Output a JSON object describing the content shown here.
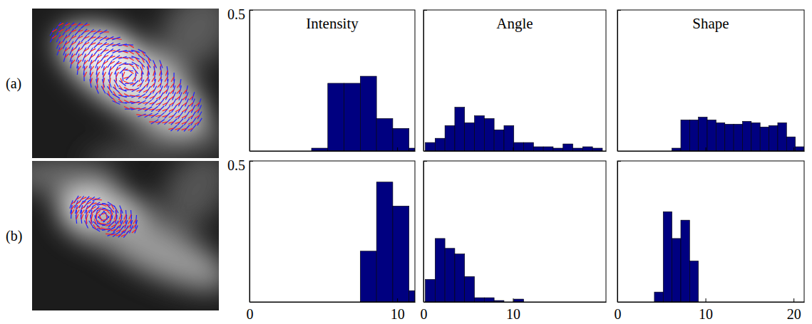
{
  "row_labels": [
    "(a)",
    "(b)"
  ],
  "chart_data": [
    {
      "type": "histogram",
      "title": "Intensity",
      "color": "#000080",
      "bins": [
        4.2,
        5.3,
        6.4,
        7.5,
        8.6,
        9.7,
        10.8,
        11.2
      ],
      "values": [
        0.01,
        0.24,
        0.24,
        0.265,
        0.115,
        0.08,
        0.01
      ],
      "xlim": [
        0,
        11.2
      ],
      "ylim": [
        0,
        0.5
      ],
      "xticks": [
        0,
        10
      ],
      "yticks": [
        0.5
      ],
      "tick_labels": "y"
    },
    {
      "type": "histogram",
      "title": "Angle",
      "color": "#000080",
      "bins": [
        0.2,
        1.3,
        2.4,
        3.5,
        4.6,
        5.7,
        6.8,
        7.9,
        9.0,
        10.1,
        11.2,
        12.3,
        13.4,
        14.5,
        15.6,
        16.7,
        17.8,
        18.9,
        20.0
      ],
      "values": [
        0.03,
        0.045,
        0.09,
        0.155,
        0.1,
        0.125,
        0.115,
        0.075,
        0.09,
        0.03,
        0.03,
        0.015,
        0.015,
        0.01,
        0.025,
        0.01,
        0.015,
        0.01
      ],
      "xlim": [
        0,
        20.4
      ],
      "ylim": [
        0,
        0.5
      ],
      "xticks": [
        0,
        10
      ],
      "yticks": [
        0.5
      ],
      "tick_labels": false
    },
    {
      "type": "histogram",
      "title": "Shape",
      "color": "#000080",
      "bins": [
        6.2,
        7.2,
        8.2,
        9.2,
        10.2,
        11.2,
        12.2,
        13.2,
        14.2,
        15.2,
        16.2,
        17.2,
        18.2,
        19.2,
        20.2,
        21.2
      ],
      "values": [
        0.01,
        0.11,
        0.11,
        0.12,
        0.11,
        0.1,
        0.095,
        0.095,
        0.105,
        0.1,
        0.085,
        0.09,
        0.1,
        0.05,
        0.015
      ],
      "xlim": [
        0,
        21.2
      ],
      "ylim": [
        0,
        0.5
      ],
      "xticks": [
        0,
        10,
        20
      ],
      "yticks": [
        0.5
      ],
      "tick_labels": false
    },
    {
      "type": "histogram",
      "color": "#000080",
      "bins": [
        7.5,
        8.6,
        9.7,
        10.8,
        11.2
      ],
      "values": [
        0.18,
        0.425,
        0.34,
        0.04
      ],
      "xlim": [
        0,
        11.2
      ],
      "ylim": [
        0,
        0.5
      ],
      "xticks": [
        0,
        10
      ],
      "yticks": [
        0.5
      ],
      "tick_labels": true
    },
    {
      "type": "histogram",
      "color": "#000080",
      "bins": [
        0.2,
        1.3,
        2.4,
        3.5,
        4.6,
        5.7,
        6.8,
        7.9,
        9.0,
        10.1,
        11.2,
        12.3,
        13.4,
        14.5,
        15.6,
        16.7,
        17.8,
        18.9,
        20.0
      ],
      "values": [
        0.08,
        0.225,
        0.19,
        0.17,
        0.09,
        0.015,
        0.015,
        0.005,
        0,
        0.01,
        0,
        0,
        0,
        0,
        0,
        0,
        0,
        0
      ],
      "xlim": [
        0,
        20.4
      ],
      "ylim": [
        0,
        0.5
      ],
      "xticks": [
        0,
        10
      ],
      "yticks": [
        0.5
      ],
      "tick_labels": "x"
    },
    {
      "type": "histogram",
      "color": "#000080",
      "bins": [
        4.2,
        5.2,
        6.2,
        7.2,
        8.2,
        9.2
      ],
      "values": [
        0.035,
        0.32,
        0.225,
        0.29,
        0.145
      ],
      "xlim": [
        0,
        21.2
      ],
      "ylim": [
        0,
        0.5
      ],
      "xticks": [
        0,
        10,
        20
      ],
      "yticks": [
        0.5
      ],
      "tick_labels": "x"
    }
  ]
}
